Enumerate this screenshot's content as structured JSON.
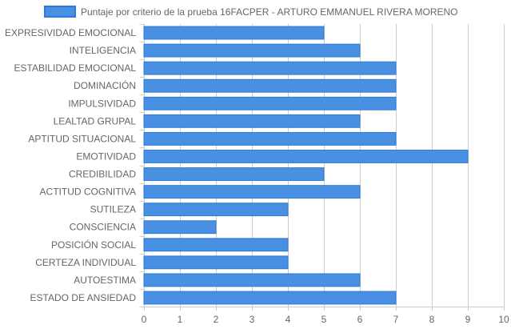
{
  "chart_data": {
    "type": "bar",
    "orientation": "horizontal",
    "title": "",
    "xlabel": "",
    "ylabel": "",
    "xlim": [
      0,
      10
    ],
    "xticks": [
      0,
      1,
      2,
      3,
      4,
      5,
      6,
      7,
      8,
      9,
      10
    ],
    "grid": true,
    "legend_position": "top",
    "colors": {
      "bar_fill": "#4a90e2",
      "bar_border": "#2f7ad8",
      "grid": "#cccccc",
      "text": "#666666"
    },
    "categories": [
      "EXPRESIVIDAD EMOCIONAL",
      "INTELIGENCIA",
      "ESTABILIDAD EMOCIONAL",
      "DOMINACIÓN",
      "IMPULSIVIDAD",
      "LEALTAD GRUPAL",
      "APTITUD SITUACIONAL",
      "EMOTIVIDAD",
      "CREDIBILIDAD",
      "ACTITUD COGNITIVA",
      "SUTILEZA",
      "CONSCIENCIA",
      "POSICIÓN SOCIAL",
      "CERTEZA INDIVIDUAL",
      "AUTOESTIMA",
      "ESTADO DE ANSIEDAD"
    ],
    "series": [
      {
        "name": "Puntaje por criterio de la prueba 16FACPER - ARTURO EMMANUEL RIVERA MORENO",
        "values": [
          5,
          6,
          7,
          7,
          7,
          6,
          7,
          9,
          5,
          6,
          4,
          2,
          4,
          4,
          6,
          7
        ]
      }
    ]
  }
}
